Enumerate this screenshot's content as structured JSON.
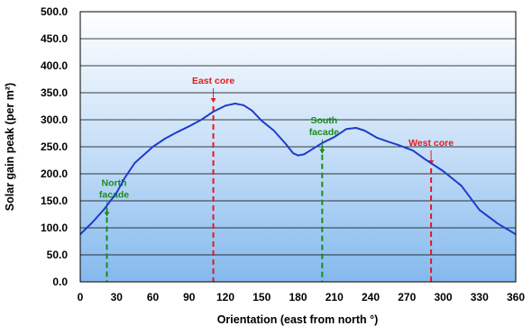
{
  "chart_data": {
    "type": "line",
    "title": "",
    "xlabel": "Orientation (east from north °)",
    "ylabel": "Solar gain peak (per m²)",
    "xlim": [
      0,
      360
    ],
    "ylim": [
      0,
      500
    ],
    "x_ticks": [
      "0",
      "30",
      "60",
      "90",
      "120",
      "150",
      "180",
      "210",
      "240",
      "270",
      "300",
      "330",
      "360"
    ],
    "y_ticks": [
      "0.0",
      "50.0",
      "100.0",
      "150.0",
      "200.0",
      "250.0",
      "300.0",
      "350.0",
      "400.0",
      "450.0",
      "500.0"
    ],
    "grid": "horizontal",
    "legend": "none",
    "background": "vertical gradient, deep blue at bottom to white at top",
    "series": [
      {
        "color": "#1e3cc8",
        "points": [
          [
            0,
            88
          ],
          [
            10,
            110
          ],
          [
            20,
            135
          ],
          [
            30,
            165
          ],
          [
            37,
            193
          ],
          [
            45,
            220
          ],
          [
            55,
            240
          ],
          [
            60,
            250
          ],
          [
            70,
            265
          ],
          [
            80,
            277
          ],
          [
            90,
            288
          ],
          [
            100,
            300
          ],
          [
            110,
            315
          ],
          [
            120,
            326
          ],
          [
            128,
            330
          ],
          [
            135,
            327
          ],
          [
            142,
            317
          ],
          [
            150,
            298
          ],
          [
            160,
            280
          ],
          [
            170,
            255
          ],
          [
            176,
            238
          ],
          [
            180,
            234
          ],
          [
            185,
            236
          ],
          [
            190,
            243
          ],
          [
            200,
            257
          ],
          [
            210,
            268
          ],
          [
            220,
            283
          ],
          [
            228,
            285
          ],
          [
            235,
            280
          ],
          [
            245,
            267
          ],
          [
            255,
            259
          ],
          [
            262,
            254
          ],
          [
            275,
            243
          ],
          [
            285,
            227
          ],
          [
            300,
            205
          ],
          [
            315,
            178
          ],
          [
            330,
            133
          ],
          [
            345,
            108
          ],
          [
            360,
            88
          ]
        ]
      }
    ],
    "annotations": [
      {
        "text": "North\nfacade",
        "x": 22,
        "color": "#1a8c1a"
      },
      {
        "text": "East core",
        "x": 110,
        "color": "#e81a1a"
      },
      {
        "text": "South\nfacade",
        "x": 200,
        "color": "#1a8c1a"
      },
      {
        "text": "West core",
        "x": 290,
        "color": "#e81a1a"
      }
    ]
  }
}
